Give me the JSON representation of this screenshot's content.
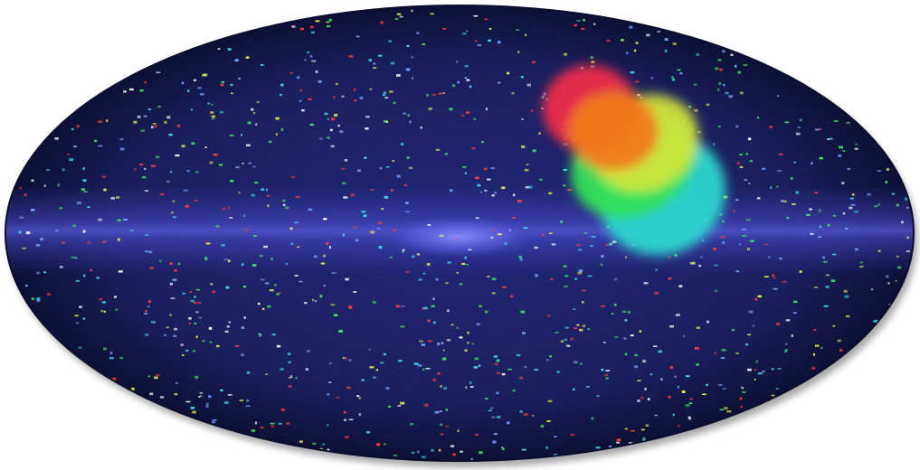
{
  "image": {
    "background_color": "#ffffff",
    "sky_base_color": "#1a1f5c",
    "sky_edge_color": "#0d1035",
    "galactic_plane_color": "#5a5ee0",
    "galactic_core_color": "#7f85ff",
    "point_source_colors": [
      "#3fd8e6",
      "#e8e84a",
      "#ff3b3b",
      "#3fe65a",
      "#f0f0f0",
      "#6fa0ff"
    ],
    "dipole_colors": {
      "cyan": "#2ad6cf",
      "green": "#33e05a",
      "yellow": "#d6e63a",
      "orange": "#f07a1e",
      "red": "#ee2a4a"
    }
  }
}
